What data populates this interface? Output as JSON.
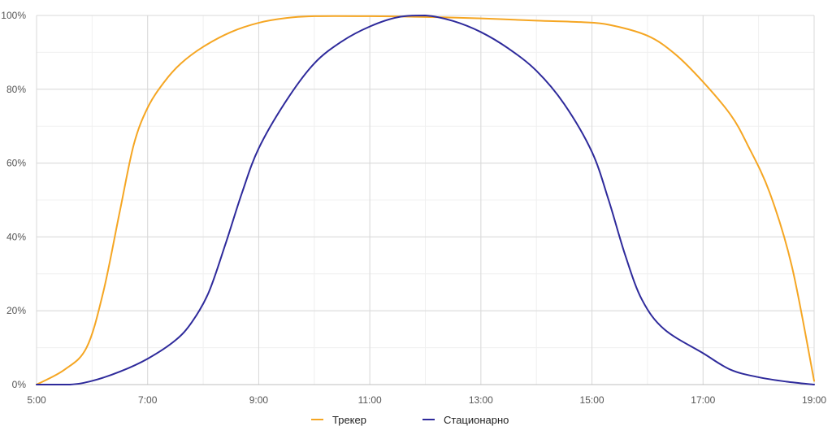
{
  "chart_data": {
    "type": "line",
    "title": "",
    "xlabel": "",
    "ylabel": "",
    "x_unit": "hour of day",
    "x_ticks": [
      {
        "value": 5,
        "label": "5:00"
      },
      {
        "value": 7,
        "label": "7:00"
      },
      {
        "value": 9,
        "label": "9:00"
      },
      {
        "value": 11,
        "label": "11:00"
      },
      {
        "value": 13,
        "label": "13:00"
      },
      {
        "value": 15,
        "label": "15:00"
      },
      {
        "value": 17,
        "label": "17:00"
      },
      {
        "value": 19,
        "label": "19:00"
      }
    ],
    "y_ticks": [
      {
        "value": 0,
        "label": "0%"
      },
      {
        "value": 20,
        "label": "20%"
      },
      {
        "value": 40,
        "label": "40%"
      },
      {
        "value": 60,
        "label": "60%"
      },
      {
        "value": 80,
        "label": "80%"
      },
      {
        "value": 100,
        "label": "100%"
      }
    ],
    "xlim": [
      5,
      19
    ],
    "ylim": [
      0,
      100
    ],
    "grid": true,
    "legend_position": "bottom",
    "series": [
      {
        "name": "Трекер",
        "color": "#F5A623",
        "points": [
          [
            5.0,
            0
          ],
          [
            5.5,
            4
          ],
          [
            5.9,
            10
          ],
          [
            6.2,
            25
          ],
          [
            6.5,
            47
          ],
          [
            6.75,
            65
          ],
          [
            7.0,
            75
          ],
          [
            7.3,
            82
          ],
          [
            7.6,
            87
          ],
          [
            8.0,
            91.5
          ],
          [
            8.5,
            95.5
          ],
          [
            9.0,
            98
          ],
          [
            9.5,
            99.3
          ],
          [
            10.0,
            99.8
          ],
          [
            11.0,
            99.8
          ],
          [
            12.0,
            99.6
          ],
          [
            13.0,
            99.2
          ],
          [
            14.0,
            98.6
          ],
          [
            14.8,
            98.2
          ],
          [
            15.3,
            97.5
          ],
          [
            16.0,
            94.5
          ],
          [
            16.5,
            89.5
          ],
          [
            17.0,
            82
          ],
          [
            17.5,
            73
          ],
          [
            17.8,
            65
          ],
          [
            18.2,
            52
          ],
          [
            18.6,
            32
          ],
          [
            19.0,
            1
          ]
        ]
      },
      {
        "name": "Стационарно",
        "color": "#2E2A9B",
        "points": [
          [
            5.0,
            0
          ],
          [
            5.6,
            0
          ],
          [
            6.0,
            1
          ],
          [
            6.5,
            3.5
          ],
          [
            7.0,
            7
          ],
          [
            7.5,
            12
          ],
          [
            7.8,
            17
          ],
          [
            8.1,
            25
          ],
          [
            8.4,
            38
          ],
          [
            8.7,
            52
          ],
          [
            9.0,
            64
          ],
          [
            9.5,
            77
          ],
          [
            10.0,
            87
          ],
          [
            10.5,
            93
          ],
          [
            11.0,
            97
          ],
          [
            11.5,
            99.5
          ],
          [
            12.0,
            100
          ],
          [
            12.5,
            98.5
          ],
          [
            13.0,
            95.5
          ],
          [
            13.5,
            91
          ],
          [
            14.0,
            85
          ],
          [
            14.5,
            76
          ],
          [
            15.0,
            63
          ],
          [
            15.3,
            50
          ],
          [
            15.6,
            35
          ],
          [
            15.9,
            23
          ],
          [
            16.3,
            15
          ],
          [
            17.0,
            8.5
          ],
          [
            17.5,
            4
          ],
          [
            18.0,
            2
          ],
          [
            18.5,
            0.8
          ],
          [
            19.0,
            0
          ]
        ]
      }
    ]
  }
}
